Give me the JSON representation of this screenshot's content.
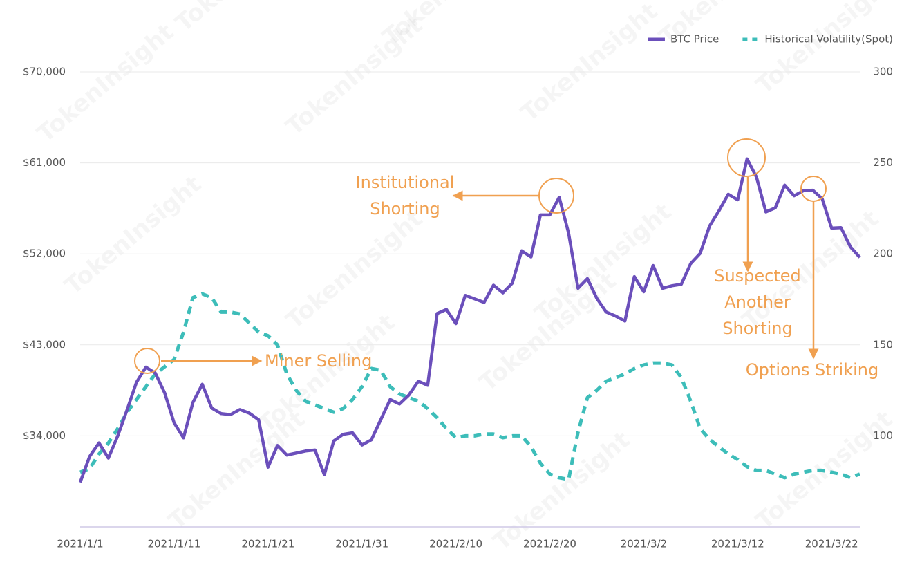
{
  "chart_data": {
    "type": "line",
    "watermark": "TokenInsight",
    "categories": [
      "2021/1/1",
      null,
      null,
      null,
      null,
      null,
      null,
      null,
      null,
      null,
      "2021/1/11",
      null,
      null,
      null,
      null,
      null,
      null,
      null,
      null,
      null,
      "2021/1/21",
      null,
      null,
      null,
      null,
      null,
      null,
      null,
      null,
      null,
      "2021/1/31",
      null,
      null,
      null,
      null,
      null,
      null,
      null,
      null,
      null,
      "2021/2/10",
      null,
      null,
      null,
      null,
      null,
      null,
      null,
      null,
      null,
      "2021/2/20",
      null,
      null,
      null,
      null,
      null,
      null,
      null,
      null,
      null,
      "2021/3/2",
      null,
      null,
      null,
      null,
      null,
      null,
      null,
      null,
      null,
      "2021/3/12",
      null,
      null,
      null,
      null,
      null,
      null,
      null,
      null,
      null,
      "2021/3/22",
      null,
      null,
      null
    ],
    "series": [
      {
        "name": "BTC Price",
        "color": "#6b4fbb",
        "style": "solid",
        "axis": "y",
        "values": [
          29400,
          31950,
          33300,
          31800,
          34000,
          36600,
          39300,
          40800,
          40200,
          38250,
          35300,
          33800,
          37300,
          39100,
          36750,
          36200,
          36100,
          36600,
          36250,
          35600,
          30900,
          33050,
          32100,
          32300,
          32500,
          32600,
          30150,
          33500,
          34150,
          34300,
          33100,
          33600,
          35600,
          37600,
          37150,
          38050,
          39400,
          39000,
          46100,
          46500,
          45100,
          47900,
          47550,
          47200,
          48900,
          48150,
          49100,
          52300,
          51700,
          55850,
          55850,
          57600,
          54050,
          48600,
          49550,
          47600,
          46250,
          45850,
          45350,
          49750,
          48250,
          50850,
          48600,
          48850,
          49000,
          51050,
          52050,
          54750,
          56250,
          57900,
          57350,
          61400,
          59600,
          56150,
          56550,
          58800,
          57750,
          58250,
          58300,
          57450,
          54550,
          54600,
          52700,
          51650
        ]
      },
      {
        "name": "Historical Volatility(Spot)",
        "color": "#3dbdb9",
        "style": "dashed",
        "axis": "y2",
        "values": [
          80,
          82,
          90,
          96,
          104,
          113,
          120,
          127,
          134,
          138,
          142,
          157,
          176,
          178,
          176,
          168,
          168,
          167,
          162,
          157,
          155,
          150,
          134,
          125,
          119,
          117,
          115,
          113,
          115,
          120,
          127,
          137,
          136,
          127,
          123,
          121,
          119,
          115,
          110,
          104,
          99,
          100,
          100,
          101,
          101,
          99,
          100,
          100,
          94,
          85,
          79,
          77,
          76,
          102,
          121,
          125,
          130,
          132,
          134,
          137,
          139,
          140,
          140,
          139,
          132,
          119,
          104,
          98,
          94,
          90,
          87,
          83,
          81,
          81,
          79,
          77,
          79,
          80,
          81,
          81,
          80,
          79,
          77,
          79
        ]
      }
    ],
    "ylim": [
      25000,
      70000
    ],
    "yticks": [
      {
        "value": 34000,
        "label": "$34,000"
      },
      {
        "value": 43000,
        "label": "$43,000"
      },
      {
        "value": 52000,
        "label": "$52,000"
      },
      {
        "value": 61000,
        "label": "$61,000"
      },
      {
        "value": 70000,
        "label": "$70,000"
      }
    ],
    "y2lim": [
      50,
      300
    ],
    "y2ticks": [
      100,
      150,
      200,
      250,
      300
    ],
    "grid": true,
    "legend": "upper right",
    "annotations": [
      {
        "lines": [
          "Miner Selling"
        ]
      },
      {
        "lines": [
          "Institutional",
          "Shorting"
        ]
      },
      {
        "lines": [
          "Suspected",
          "Another",
          "Shorting"
        ]
      },
      {
        "lines": [
          "Options Striking"
        ]
      }
    ]
  }
}
